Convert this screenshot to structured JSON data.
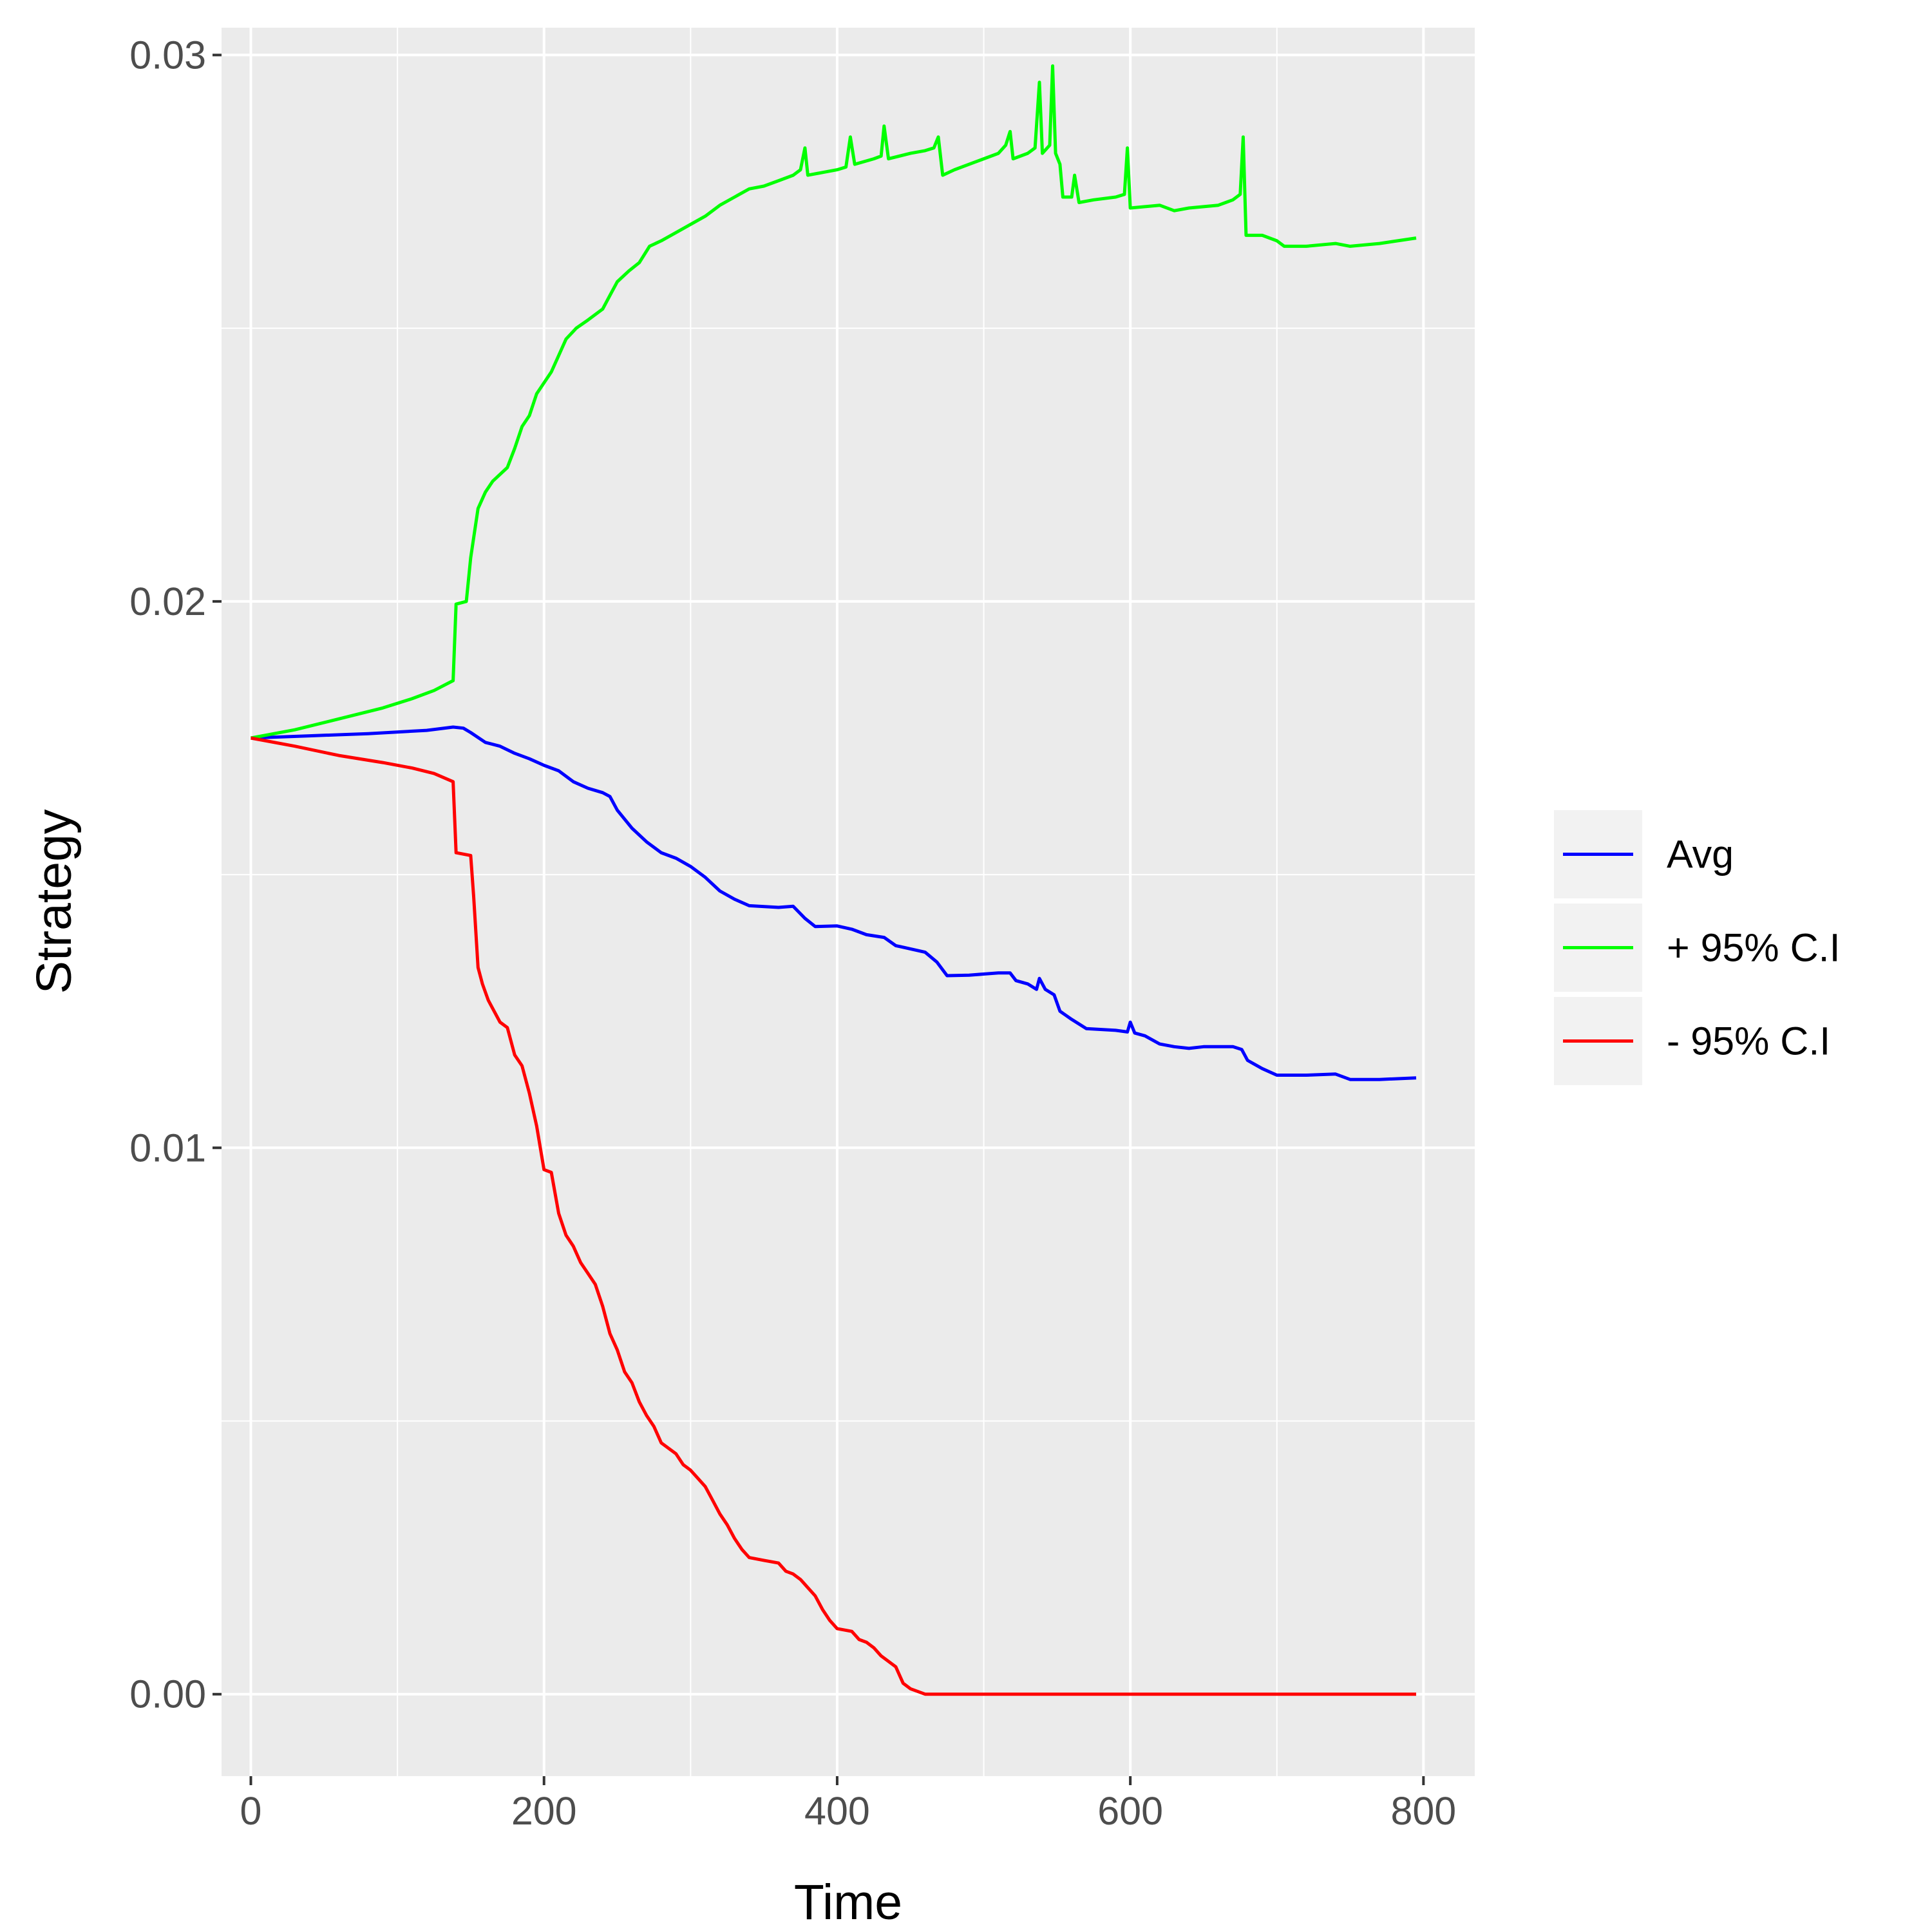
{
  "chart_data": {
    "type": "line",
    "title": "",
    "xlabel": "Time",
    "ylabel": "Strategy",
    "xlim": [
      -20,
      835
    ],
    "ylim": [
      -0.0015,
      0.0305
    ],
    "x_ticks": [
      0,
      200,
      400,
      600,
      800
    ],
    "x_tick_labels": [
      "0",
      "200",
      "400",
      "600",
      "800"
    ],
    "y_ticks": [
      0.0,
      0.01,
      0.02,
      0.03
    ],
    "y_tick_labels": [
      "0.00",
      "0.01",
      "0.02",
      "0.03"
    ],
    "grid": true,
    "legend_position": "right",
    "panel_background": "#ebebeb",
    "series": [
      {
        "name": "Avg",
        "color": "#0000ff",
        "points": [
          [
            0,
            0.0175
          ],
          [
            40,
            0.01754
          ],
          [
            80,
            0.01758
          ],
          [
            120,
            0.01764
          ],
          [
            138,
            0.0177
          ],
          [
            145,
            0.01768
          ],
          [
            150,
            0.0176
          ],
          [
            160,
            0.01742
          ],
          [
            170,
            0.01735
          ],
          [
            180,
            0.01722
          ],
          [
            190,
            0.01712
          ],
          [
            200,
            0.017
          ],
          [
            210,
            0.0169
          ],
          [
            220,
            0.0167
          ],
          [
            230,
            0.01658
          ],
          [
            240,
            0.0165
          ],
          [
            245,
            0.01643
          ],
          [
            250,
            0.01618
          ],
          [
            260,
            0.01585
          ],
          [
            270,
            0.0156
          ],
          [
            280,
            0.0154
          ],
          [
            290,
            0.0153
          ],
          [
            300,
            0.01515
          ],
          [
            310,
            0.01495
          ],
          [
            320,
            0.0147
          ],
          [
            330,
            0.01455
          ],
          [
            340,
            0.01443
          ],
          [
            360,
            0.0144
          ],
          [
            370,
            0.01442
          ],
          [
            378,
            0.0142
          ],
          [
            385,
            0.01405
          ],
          [
            400,
            0.01406
          ],
          [
            410,
            0.014
          ],
          [
            420,
            0.0139
          ],
          [
            432,
            0.01385
          ],
          [
            440,
            0.0137
          ],
          [
            460,
            0.01358
          ],
          [
            468,
            0.0134
          ],
          [
            475,
            0.01315
          ],
          [
            490,
            0.01316
          ],
          [
            510,
            0.0132
          ],
          [
            518,
            0.0132
          ],
          [
            522,
            0.01306
          ],
          [
            530,
            0.013
          ],
          [
            536,
            0.0129
          ],
          [
            538,
            0.0131
          ],
          [
            542,
            0.0129
          ],
          [
            548,
            0.0128
          ],
          [
            552,
            0.0125
          ],
          [
            560,
            0.01235
          ],
          [
            570,
            0.01218
          ],
          [
            590,
            0.01215
          ],
          [
            598,
            0.01212
          ],
          [
            600,
            0.0123
          ],
          [
            603,
            0.0121
          ],
          [
            610,
            0.01205
          ],
          [
            620,
            0.0119
          ],
          [
            630,
            0.01185
          ],
          [
            640,
            0.01182
          ],
          [
            650,
            0.01185
          ],
          [
            670,
            0.01185
          ],
          [
            676,
            0.0118
          ],
          [
            680,
            0.0116
          ],
          [
            690,
            0.01145
          ],
          [
            700,
            0.01133
          ],
          [
            720,
            0.01133
          ],
          [
            740,
            0.01135
          ],
          [
            750,
            0.01125
          ],
          [
            770,
            0.01125
          ],
          [
            795,
            0.01128
          ]
        ]
      },
      {
        "name": "+ 95% C.I",
        "color": "#00ff00",
        "points": [
          [
            0,
            0.0175
          ],
          [
            30,
            0.01765
          ],
          [
            60,
            0.01785
          ],
          [
            90,
            0.01805
          ],
          [
            110,
            0.01822
          ],
          [
            125,
            0.01837
          ],
          [
            138,
            0.01855
          ],
          [
            140,
            0.01995
          ],
          [
            147,
            0.02
          ],
          [
            150,
            0.0208
          ],
          [
            155,
            0.0217
          ],
          [
            160,
            0.022
          ],
          [
            165,
            0.0222
          ],
          [
            175,
            0.02245
          ],
          [
            180,
            0.0228
          ],
          [
            185,
            0.0232
          ],
          [
            190,
            0.0234
          ],
          [
            195,
            0.0238
          ],
          [
            200,
            0.024
          ],
          [
            205,
            0.0242
          ],
          [
            210,
            0.0245
          ],
          [
            215,
            0.0248
          ],
          [
            222,
            0.025
          ],
          [
            230,
            0.02515
          ],
          [
            240,
            0.02535
          ],
          [
            245,
            0.0256
          ],
          [
            250,
            0.02585
          ],
          [
            258,
            0.02605
          ],
          [
            265,
            0.0262
          ],
          [
            272,
            0.0265
          ],
          [
            280,
            0.0266
          ],
          [
            290,
            0.02675
          ],
          [
            300,
            0.0269
          ],
          [
            310,
            0.02705
          ],
          [
            320,
            0.02725
          ],
          [
            330,
            0.0274
          ],
          [
            340,
            0.02755
          ],
          [
            350,
            0.0276
          ],
          [
            360,
            0.0277
          ],
          [
            370,
            0.0278
          ],
          [
            375,
            0.0279
          ],
          [
            378,
            0.0283
          ],
          [
            380,
            0.0278
          ],
          [
            390,
            0.02785
          ],
          [
            400,
            0.0279
          ],
          [
            406,
            0.02795
          ],
          [
            409,
            0.0285
          ],
          [
            412,
            0.028
          ],
          [
            425,
            0.0281
          ],
          [
            430,
            0.02815
          ],
          [
            432,
            0.0287
          ],
          [
            435,
            0.0281
          ],
          [
            450,
            0.0282
          ],
          [
            460,
            0.02825
          ],
          [
            466,
            0.0283
          ],
          [
            469,
            0.0285
          ],
          [
            472,
            0.0278
          ],
          [
            480,
            0.0279
          ],
          [
            500,
            0.0281
          ],
          [
            510,
            0.0282
          ],
          [
            515,
            0.02835
          ],
          [
            518,
            0.0286
          ],
          [
            520,
            0.0281
          ],
          [
            530,
            0.0282
          ],
          [
            535,
            0.0283
          ],
          [
            538,
            0.0295
          ],
          [
            540,
            0.0282
          ],
          [
            545,
            0.02835
          ],
          [
            547,
            0.0298
          ],
          [
            549,
            0.0282
          ],
          [
            552,
            0.028
          ],
          [
            554,
            0.0274
          ],
          [
            560,
            0.0274
          ],
          [
            562,
            0.0278
          ],
          [
            565,
            0.0273
          ],
          [
            575,
            0.02735
          ],
          [
            590,
            0.0274
          ],
          [
            596,
            0.02745
          ],
          [
            598,
            0.0283
          ],
          [
            600,
            0.0272
          ],
          [
            620,
            0.02725
          ],
          [
            630,
            0.02715
          ],
          [
            640,
            0.0272
          ],
          [
            660,
            0.02725
          ],
          [
            670,
            0.02735
          ],
          [
            675,
            0.02745
          ],
          [
            677,
            0.0285
          ],
          [
            679,
            0.0267
          ],
          [
            690,
            0.0267
          ],
          [
            700,
            0.0266
          ],
          [
            705,
            0.0265
          ],
          [
            720,
            0.0265
          ],
          [
            740,
            0.02655
          ],
          [
            750,
            0.0265
          ],
          [
            770,
            0.02655
          ],
          [
            795,
            0.02665
          ]
        ]
      },
      {
        "name": "- 95% C.I",
        "color": "#ff0000",
        "points": [
          [
            0,
            0.0175
          ],
          [
            30,
            0.01735
          ],
          [
            60,
            0.01718
          ],
          [
            90,
            0.01705
          ],
          [
            110,
            0.01695
          ],
          [
            125,
            0.01685
          ],
          [
            138,
            0.0167
          ],
          [
            140,
            0.0154
          ],
          [
            150,
            0.01535
          ],
          [
            152,
            0.0146
          ],
          [
            155,
            0.0133
          ],
          [
            158,
            0.013
          ],
          [
            162,
            0.0127
          ],
          [
            170,
            0.0123
          ],
          [
            175,
            0.0122
          ],
          [
            180,
            0.0117
          ],
          [
            185,
            0.0115
          ],
          [
            190,
            0.011
          ],
          [
            195,
            0.0104
          ],
          [
            200,
            0.0096
          ],
          [
            205,
            0.00955
          ],
          [
            210,
            0.0088
          ],
          [
            215,
            0.0084
          ],
          [
            220,
            0.0082
          ],
          [
            225,
            0.0079
          ],
          [
            230,
            0.0077
          ],
          [
            235,
            0.0075
          ],
          [
            240,
            0.0071
          ],
          [
            245,
            0.0066
          ],
          [
            250,
            0.0063
          ],
          [
            255,
            0.0059
          ],
          [
            260,
            0.0057
          ],
          [
            265,
            0.00535
          ],
          [
            270,
            0.0051
          ],
          [
            275,
            0.0049
          ],
          [
            280,
            0.0046
          ],
          [
            290,
            0.0044
          ],
          [
            295,
            0.0042
          ],
          [
            300,
            0.0041
          ],
          [
            305,
            0.00395
          ],
          [
            310,
            0.0038
          ],
          [
            315,
            0.00355
          ],
          [
            320,
            0.0033
          ],
          [
            325,
            0.0031
          ],
          [
            330,
            0.00285
          ],
          [
            335,
            0.00265
          ],
          [
            340,
            0.0025
          ],
          [
            350,
            0.00245
          ],
          [
            360,
            0.0024
          ],
          [
            365,
            0.00225
          ],
          [
            370,
            0.0022
          ],
          [
            375,
            0.0021
          ],
          [
            380,
            0.00195
          ],
          [
            385,
            0.0018
          ],
          [
            390,
            0.00155
          ],
          [
            395,
            0.00135
          ],
          [
            400,
            0.0012
          ],
          [
            410,
            0.00115
          ],
          [
            415,
            0.001
          ],
          [
            420,
            0.00095
          ],
          [
            425,
            0.00085
          ],
          [
            430,
            0.0007
          ],
          [
            435,
            0.0006
          ],
          [
            440,
            0.0005
          ],
          [
            445,
            0.0002
          ],
          [
            450,
            0.0001
          ],
          [
            460,
            0.0
          ],
          [
            500,
            0.0
          ],
          [
            600,
            0.0
          ],
          [
            700,
            0.0
          ],
          [
            795,
            0.0
          ]
        ]
      }
    ]
  }
}
